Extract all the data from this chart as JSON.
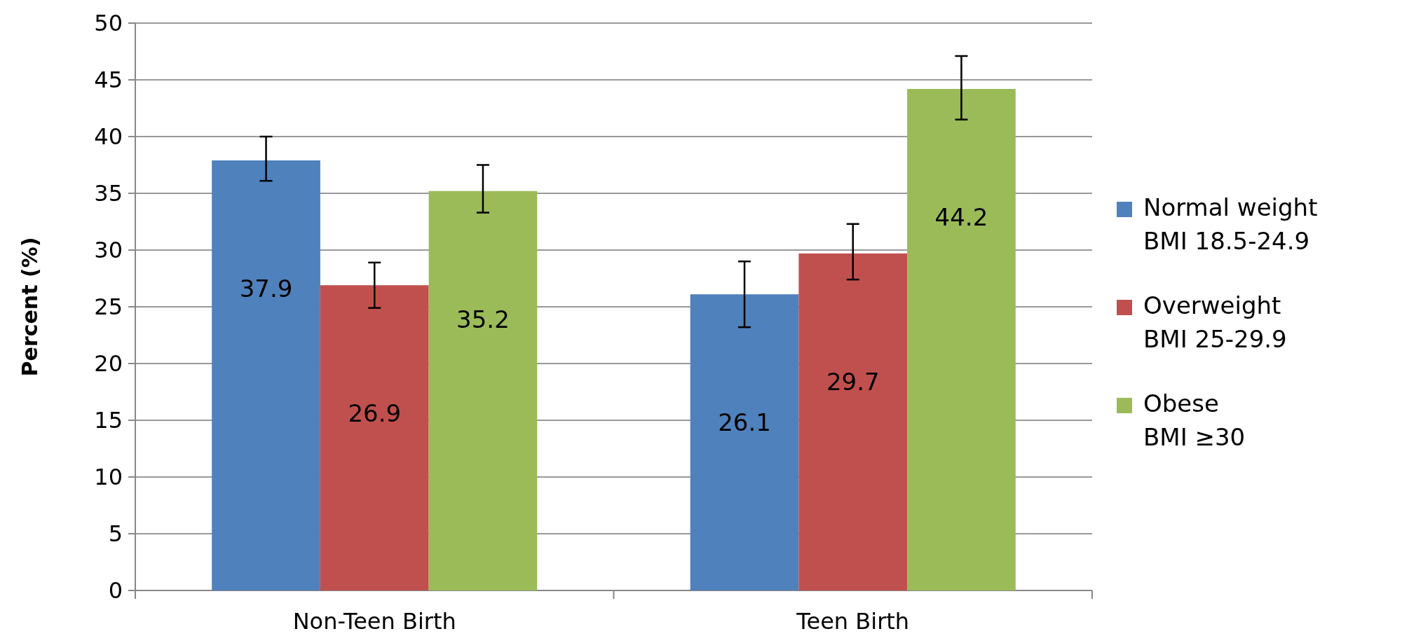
{
  "chart_data": {
    "type": "bar",
    "ylabel": "Percent (%)",
    "categories": [
      "Non-Teen Birth",
      "Teen Birth"
    ],
    "series": [
      {
        "name": "Normal weight\nBMI 18.5-24.9",
        "color": "#4f81bd",
        "values": [
          37.9,
          26.1
        ],
        "errors": [
          [
            36.1,
            40.0
          ],
          [
            23.2,
            29.0
          ]
        ]
      },
      {
        "name": "Overweight\nBMI 25-29.9",
        "color": "#c0504d",
        "values": [
          26.9,
          29.7
        ],
        "errors": [
          [
            24.9,
            28.9
          ],
          [
            27.4,
            32.3
          ]
        ]
      },
      {
        "name": "Obese\nBMI ≥30",
        "color": "#9bbb59",
        "values": [
          35.2,
          44.2
        ],
        "errors": [
          [
            33.3,
            37.5
          ],
          [
            41.5,
            47.1
          ]
        ]
      }
    ],
    "ylim": [
      0,
      50
    ],
    "yticks": [
      0,
      5,
      10,
      15,
      20,
      25,
      30,
      35,
      40,
      45,
      50
    ],
    "grid": "y",
    "legend": "right",
    "data_labels": true
  }
}
